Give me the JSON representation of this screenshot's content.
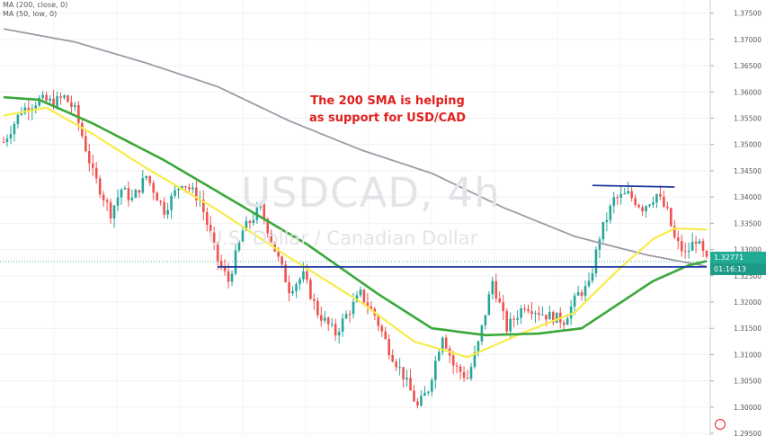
{
  "indicators": {
    "ma200": "MA (200, close, 0)",
    "ma50": "MA (50, low, 0)"
  },
  "watermark": {
    "symbol": "USDCAD, 4h",
    "description": "U.S. Dollar / Canadian Dollar"
  },
  "annotation": {
    "line1": "The 200 SMA is helping",
    "line2": "as support for USD/CAD"
  },
  "price_badge": {
    "price": "1.32771",
    "countdown": "01:16:13",
    "color": "#22ab94"
  },
  "colors": {
    "up": "#26a69a",
    "down": "#ef5350",
    "ma200": "#9e9aa6",
    "ma100": "#3aa83a",
    "ma50": "#f7ec4a",
    "trendline": "#1c3a9e",
    "annotation": "#e0201c"
  },
  "chart_data": {
    "type": "candlestick",
    "symbol": "USDCAD",
    "timeframe": "4h",
    "ylim": [
      1.2945,
      1.3775
    ],
    "y_ticks": [
      "1.37500",
      "1.37000",
      "1.36500",
      "1.36000",
      "1.35500",
      "1.35000",
      "1.34500",
      "1.34000",
      "1.33500",
      "1.33000",
      "1.32500",
      "1.32000",
      "1.31500",
      "1.31000",
      "1.30500",
      "1.30000",
      "1.29500"
    ],
    "current_price": 1.32771,
    "ohlc_path": [
      {
        "x": 0,
        "y": 1.3505
      },
      {
        "x": 5,
        "y": 1.3565
      },
      {
        "x": 10,
        "y": 1.3585
      },
      {
        "x": 14,
        "y": 1.358
      },
      {
        "x": 17,
        "y": 1.359
      },
      {
        "x": 20,
        "y": 1.3565
      },
      {
        "x": 25,
        "y": 1.3445
      },
      {
        "x": 30,
        "y": 1.337
      },
      {
        "x": 33,
        "y": 1.3415
      },
      {
        "x": 36,
        "y": 1.3395
      },
      {
        "x": 40,
        "y": 1.344
      },
      {
        "x": 45,
        "y": 1.3375
      },
      {
        "x": 50,
        "y": 1.343
      },
      {
        "x": 55,
        "y": 1.3395
      },
      {
        "x": 60,
        "y": 1.328
      },
      {
        "x": 63,
        "y": 1.324
      },
      {
        "x": 67,
        "y": 1.3335
      },
      {
        "x": 72,
        "y": 1.338
      },
      {
        "x": 76,
        "y": 1.33
      },
      {
        "x": 80,
        "y": 1.3225
      },
      {
        "x": 84,
        "y": 1.325
      },
      {
        "x": 88,
        "y": 1.318
      },
      {
        "x": 93,
        "y": 1.314
      },
      {
        "x": 96,
        "y": 1.3175
      },
      {
        "x": 100,
        "y": 1.3215
      },
      {
        "x": 104,
        "y": 1.3175
      },
      {
        "x": 108,
        "y": 1.311
      },
      {
        "x": 112,
        "y": 1.306
      },
      {
        "x": 116,
        "y": 1.3
      },
      {
        "x": 119,
        "y": 1.3035
      },
      {
        "x": 123,
        "y": 1.314
      },
      {
        "x": 126,
        "y": 1.308
      },
      {
        "x": 130,
        "y": 1.3055
      },
      {
        "x": 133,
        "y": 1.312
      },
      {
        "x": 137,
        "y": 1.324
      },
      {
        "x": 141,
        "y": 1.315
      },
      {
        "x": 146,
        "y": 1.3195
      },
      {
        "x": 152,
        "y": 1.3175
      },
      {
        "x": 157,
        "y": 1.3165
      },
      {
        "x": 161,
        "y": 1.3215
      },
      {
        "x": 164,
        "y": 1.323
      },
      {
        "x": 167,
        "y": 1.3325
      },
      {
        "x": 171,
        "y": 1.3395
      },
      {
        "x": 175,
        "y": 1.3405
      },
      {
        "x": 179,
        "y": 1.338
      },
      {
        "x": 183,
        "y": 1.3405
      },
      {
        "x": 186,
        "y": 1.337
      },
      {
        "x": 188,
        "y": 1.332
      },
      {
        "x": 191,
        "y": 1.329
      },
      {
        "x": 194,
        "y": 1.332
      },
      {
        "x": 197,
        "y": 1.3277
      }
    ],
    "series": [
      {
        "name": "MA (200, close, 0)",
        "color": "#9e9aa6",
        "points": [
          [
            0,
            1.372
          ],
          [
            20,
            1.3695
          ],
          [
            40,
            1.3655
          ],
          [
            60,
            1.361
          ],
          [
            80,
            1.3545
          ],
          [
            100,
            1.349
          ],
          [
            120,
            1.3445
          ],
          [
            140,
            1.338
          ],
          [
            160,
            1.3325
          ],
          [
            180,
            1.329
          ],
          [
            197,
            1.3268
          ]
        ]
      },
      {
        "name": "MA (50, low, 0)",
        "color": "#f7ec4a",
        "points": [
          [
            0,
            1.3555
          ],
          [
            12,
            1.357
          ],
          [
            25,
            1.352
          ],
          [
            40,
            1.3455
          ],
          [
            60,
            1.3375
          ],
          [
            80,
            1.3285
          ],
          [
            100,
            1.32
          ],
          [
            115,
            1.3125
          ],
          [
            130,
            1.3095
          ],
          [
            145,
            1.314
          ],
          [
            160,
            1.318
          ],
          [
            172,
            1.326
          ],
          [
            182,
            1.332
          ],
          [
            188,
            1.334
          ],
          [
            197,
            1.3338
          ]
        ]
      },
      {
        "name": "",
        "color": "#3aa83a",
        "points": [
          [
            0,
            1.359
          ],
          [
            10,
            1.3585
          ],
          [
            25,
            1.354
          ],
          [
            45,
            1.347
          ],
          [
            65,
            1.339
          ],
          [
            85,
            1.331
          ],
          [
            105,
            1.3215
          ],
          [
            120,
            1.315
          ],
          [
            135,
            1.3137
          ],
          [
            150,
            1.314
          ],
          [
            162,
            1.315
          ],
          [
            172,
            1.3195
          ],
          [
            182,
            1.324
          ],
          [
            192,
            1.327
          ],
          [
            197,
            1.3278
          ]
        ]
      }
    ],
    "trendlines": [
      {
        "from": [
          60,
          1.3267
        ],
        "to": [
          197,
          1.3267
        ]
      },
      {
        "from": [
          165,
          1.3422
        ],
        "to": [
          188,
          1.3419
        ]
      }
    ],
    "grid": true
  }
}
